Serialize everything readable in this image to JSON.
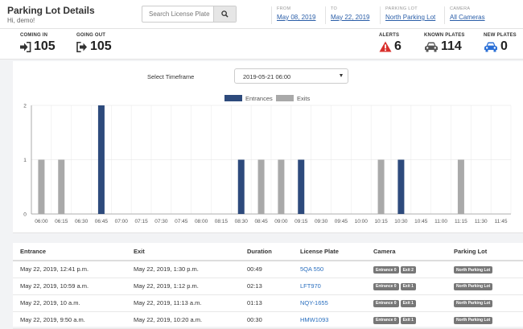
{
  "header": {
    "title": "Parking Lot Details",
    "greeting": "Hi, demo!",
    "search_placeholder": "Search License Plate",
    "filters": [
      {
        "label": "FROM",
        "value": "May 08, 2019"
      },
      {
        "label": "TO",
        "value": "May 22, 2019"
      },
      {
        "label": "PARKING LOT",
        "value": "North Parking Lot"
      },
      {
        "label": "CAMERA",
        "value": "All Cameras"
      }
    ]
  },
  "stats": {
    "coming_in": {
      "label": "COMING IN",
      "value": "105",
      "icon": "sign-in-icon"
    },
    "going_out": {
      "label": "GOING OUT",
      "value": "105",
      "icon": "sign-out-icon"
    },
    "alerts": {
      "label": "ALERTS",
      "value": "6",
      "icon": "warning-icon",
      "color": "#d9302c"
    },
    "known_plates": {
      "label": "KNOWN PLATES",
      "value": "114",
      "icon": "car-icon",
      "color": "#555555"
    },
    "new_plates": {
      "label": "NEW PLATES",
      "value": "0",
      "icon": "car-icon",
      "color": "#2a6fd6"
    }
  },
  "timeframe": {
    "label": "Select Timeframe",
    "value": "2019-05-21 06:00"
  },
  "chart_data": {
    "type": "bar",
    "categories": [
      "06:00",
      "06:15",
      "06:30",
      "06:45",
      "07:00",
      "07:15",
      "07:30",
      "07:45",
      "08:00",
      "08:15",
      "08:30",
      "08:45",
      "09:00",
      "09:15",
      "09:30",
      "09:45",
      "10:00",
      "10:15",
      "10:30",
      "10:45",
      "11:00",
      "11:15",
      "11:30",
      "11:45"
    ],
    "series": [
      {
        "name": "Entrances",
        "color": "#2d4a7c",
        "values": [
          0,
          0,
          0,
          2,
          0,
          0,
          0,
          0,
          0,
          0,
          1,
          0,
          0,
          1,
          0,
          0,
          0,
          0,
          1,
          0,
          0,
          0,
          0,
          0
        ]
      },
      {
        "name": "Exits",
        "color": "#a9a9a9",
        "values": [
          1,
          1,
          0,
          0,
          0,
          0,
          0,
          0,
          0,
          0,
          0,
          1,
          1,
          0,
          0,
          0,
          0,
          1,
          0,
          0,
          0,
          1,
          0,
          0
        ]
      }
    ],
    "ylim": [
      0,
      2
    ],
    "yticks": [
      "0",
      "1",
      "2"
    ],
    "grid": true,
    "legend": "top-center"
  },
  "table": {
    "columns": [
      "Entrance",
      "Exit",
      "Duration",
      "License Plate",
      "Camera",
      "Parking Lot"
    ],
    "rows": [
      {
        "entrance": "May 22, 2019, 12:41 p.m.",
        "exit": "May 22, 2019, 1:30 p.m.",
        "duration": "00:49",
        "plate": "5QA 550",
        "cam_in": "Entrance 0",
        "cam_out": "Exit 2",
        "lot": "North Parking Lot"
      },
      {
        "entrance": "May 22, 2019, 10:59 a.m.",
        "exit": "May 22, 2019, 1:12 p.m.",
        "duration": "02:13",
        "plate": "LFT970",
        "cam_in": "Entrance 0",
        "cam_out": "Exit 1",
        "lot": "North Parking Lot"
      },
      {
        "entrance": "May 22, 2019, 10 a.m.",
        "exit": "May 22, 2019, 11:13 a.m.",
        "duration": "01:13",
        "plate": "NQY-1655",
        "cam_in": "Entrance 0",
        "cam_out": "Exit 1",
        "lot": "North Parking Lot"
      },
      {
        "entrance": "May 22, 2019, 9:50 a.m.",
        "exit": "May 22, 2019, 10:20 a.m.",
        "duration": "00:30",
        "plate": "HMW1093",
        "cam_in": "Entrance 0",
        "cam_out": "Exit 1",
        "lot": "North Parking Lot"
      }
    ]
  }
}
